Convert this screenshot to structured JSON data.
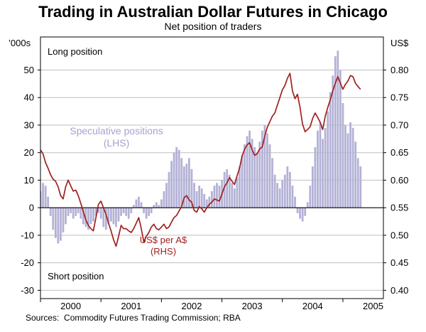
{
  "page": {
    "title": "Trading in Australian Dollar Futures in Chicago",
    "subtitle": "Net position of traders",
    "source_note": "Sources:  Commodity Futures Trading Commission; RBA"
  },
  "chart_data": {
    "type": "bar+line",
    "title": "Trading in Australian Dollar Futures in Chicago",
    "subtitle": "Net position of traders",
    "grid": true,
    "x_axis": {
      "labels": [
        "2000",
        "2001",
        "2002",
        "2003",
        "2004",
        "2005"
      ],
      "label_positions": [
        2000.5,
        2001.5,
        2002.5,
        2003.5,
        2004.5,
        2005.5
      ],
      "year_ticks": [
        2000,
        2001,
        2002,
        2003,
        2004,
        2005
      ],
      "range": [
        2000.0,
        2005.67
      ]
    },
    "left_axis": {
      "unit": "’000s",
      "tick_labels": [
        "50",
        "40",
        "30",
        "20",
        "10",
        "0",
        "-10",
        "-20",
        "-30"
      ],
      "tick_values": [
        50,
        40,
        30,
        20,
        10,
        0,
        -10,
        -20,
        -30
      ],
      "range": [
        -33,
        62
      ]
    },
    "right_axis": {
      "unit": "US$",
      "tick_labels": [
        "0.80",
        "0.75",
        "0.70",
        "0.65",
        "0.60",
        "0.55",
        "0.50",
        "0.45",
        "0.40"
      ],
      "tick_values": [
        0.8,
        0.75,
        0.7,
        0.65,
        0.6,
        0.55,
        0.5,
        0.45,
        0.4
      ],
      "range": [
        0.385,
        0.86
      ]
    },
    "annotations": {
      "long_label": "Long position",
      "short_label": "Short position",
      "bars_label1": "Speculative positions",
      "bars_label2": "(LHS)",
      "line_label1": "US$ per A$",
      "line_label2": "(RHS)"
    },
    "colors": {
      "bars": "#b3b1d6",
      "bars_label": "#a5a3cd",
      "line": "#a1201f",
      "grid": "#bfbfbf",
      "axis": "#000000",
      "zero_line": "#000000"
    },
    "series": [
      {
        "name": "Speculative positions",
        "axis": "LHS",
        "type": "bar",
        "unit": "'000s of contracts (net position of traders)",
        "x_start": 2000.0,
        "x_step_years": 0.0416667,
        "values": [
          6,
          9,
          8,
          4,
          -3,
          -8,
          -11,
          -13,
          -12,
          -9,
          -6,
          -3,
          -2,
          -4,
          -3,
          -2,
          -4,
          -6,
          -7,
          -8,
          -6,
          -5,
          -3,
          -2,
          -4,
          -7,
          -8,
          -6,
          -5,
          -6,
          -7,
          -5,
          -3,
          -2,
          -3,
          -4,
          -2,
          1,
          3,
          4,
          2,
          -2,
          -4,
          -3,
          -2,
          1,
          2,
          1,
          3,
          6,
          9,
          13,
          17,
          20,
          22,
          21,
          18,
          15,
          16,
          18,
          14,
          9,
          6,
          8,
          7,
          5,
          3,
          4,
          6,
          8,
          9,
          8,
          10,
          13,
          14,
          12,
          9,
          7,
          11,
          15,
          19,
          23,
          26,
          28,
          25,
          22,
          20,
          24,
          28,
          30,
          27,
          23,
          18,
          12,
          9,
          7,
          10,
          12,
          15,
          13,
          8,
          4,
          -2,
          -4,
          -5,
          -3,
          2,
          8,
          15,
          22,
          28,
          31,
          25,
          29,
          35,
          42,
          48,
          55,
          57,
          50,
          38,
          30,
          27,
          31,
          29,
          24,
          18,
          15
        ]
      },
      {
        "name": "US$ per A$",
        "axis": "RHS",
        "type": "line",
        "unit": "US$",
        "x_start": 2000.0,
        "x_step_years": 0.0416667,
        "values": [
          0.655,
          0.648,
          0.632,
          0.622,
          0.61,
          0.602,
          0.598,
          0.588,
          0.572,
          0.566,
          0.588,
          0.6,
          0.59,
          0.58,
          0.582,
          0.572,
          0.558,
          0.543,
          0.528,
          0.518,
          0.512,
          0.508,
          0.532,
          0.556,
          0.562,
          0.55,
          0.538,
          0.522,
          0.508,
          0.492,
          0.48,
          0.498,
          0.518,
          0.512,
          0.512,
          0.508,
          0.505,
          0.512,
          0.522,
          0.532,
          0.512,
          0.488,
          0.498,
          0.505,
          0.515,
          0.52,
          0.512,
          0.51,
          0.515,
          0.52,
          0.512,
          0.515,
          0.524,
          0.532,
          0.536,
          0.544,
          0.552,
          0.568,
          0.572,
          0.564,
          0.56,
          0.545,
          0.542,
          0.552,
          0.548,
          0.542,
          0.55,
          0.556,
          0.56,
          0.566,
          0.564,
          0.562,
          0.575,
          0.588,
          0.595,
          0.605,
          0.598,
          0.592,
          0.608,
          0.622,
          0.644,
          0.656,
          0.664,
          0.668,
          0.655,
          0.645,
          0.648,
          0.657,
          0.66,
          0.68,
          0.696,
          0.706,
          0.716,
          0.722,
          0.736,
          0.75,
          0.764,
          0.772,
          0.785,
          0.794,
          0.762,
          0.748,
          0.756,
          0.732,
          0.702,
          0.688,
          0.692,
          0.697,
          0.712,
          0.722,
          0.714,
          0.705,
          0.692,
          0.716,
          0.732,
          0.746,
          0.762,
          0.776,
          0.788,
          0.776,
          0.765,
          0.774,
          0.78,
          0.79,
          0.788,
          0.776,
          0.77,
          0.765
        ]
      }
    ]
  }
}
